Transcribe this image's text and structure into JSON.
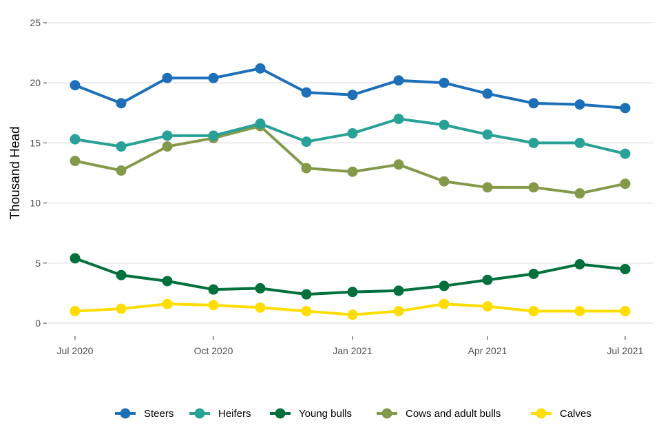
{
  "chart_data": {
    "type": "line",
    "title": "",
    "xlabel": "",
    "ylabel": "Thousand Head",
    "ylim": [
      0,
      25
    ],
    "yticks": [
      "0",
      "5",
      "10",
      "15",
      "20",
      "25"
    ],
    "xticks": [
      "Jul 2020",
      "Oct 2020",
      "Jan 2021",
      "Apr 2021",
      "Jul 2021"
    ],
    "x": [
      "2020-07",
      "2020-08",
      "2020-09",
      "2020-10",
      "2020-11",
      "2020-12",
      "2021-01",
      "2021-02",
      "2021-03",
      "2021-04",
      "2021-05",
      "2021-06",
      "2021-07"
    ],
    "grid": "horizontal",
    "legend_position": "bottom",
    "series": [
      {
        "name": "Steers",
        "color": "#1d70b8",
        "values": [
          19.8,
          18.3,
          20.4,
          20.4,
          21.2,
          19.2,
          19.0,
          20.2,
          20.0,
          19.1,
          18.3,
          18.2,
          17.9
        ]
      },
      {
        "name": "Heifers",
        "color": "#28a197",
        "values": [
          15.3,
          14.7,
          15.6,
          15.6,
          16.6,
          15.1,
          15.8,
          17.0,
          16.5,
          15.7,
          15.0,
          15.0,
          14.1
        ]
      },
      {
        "name": "Young bulls",
        "color": "#00703c",
        "values": [
          5.4,
          4.0,
          3.5,
          2.8,
          2.9,
          2.4,
          2.6,
          2.7,
          3.1,
          3.6,
          4.1,
          4.9,
          4.5
        ]
      },
      {
        "name": "Cows and adult bulls",
        "color": "#85994b",
        "values": [
          13.5,
          12.7,
          14.7,
          15.4,
          16.4,
          12.9,
          12.6,
          13.2,
          11.8,
          11.3,
          11.3,
          10.8,
          11.6
        ]
      },
      {
        "name": "Calves",
        "color": "#ffdd00",
        "values": [
          1.0,
          1.2,
          1.6,
          1.5,
          1.3,
          1.0,
          0.7,
          1.0,
          1.6,
          1.4,
          1.0,
          1.0,
          1.0
        ]
      }
    ]
  }
}
